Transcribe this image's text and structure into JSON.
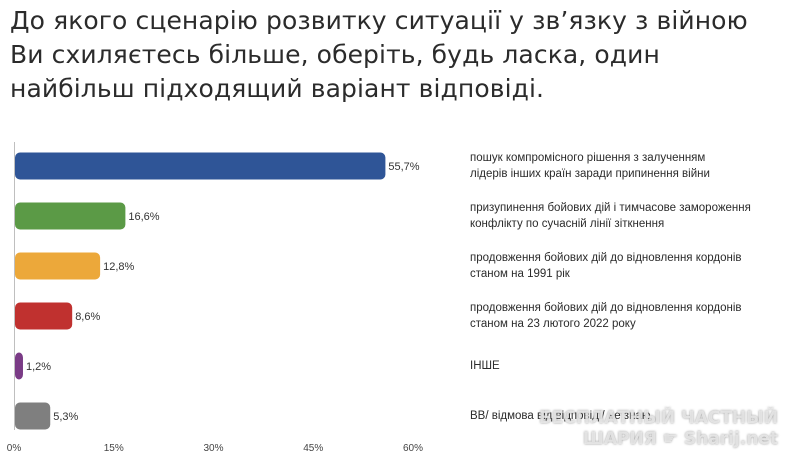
{
  "title_lines": [
    "До якого сценарію розвитку ситуації у зв’язку з війною",
    "Ви схиляєтесь більше, оберіть, будь ласка, один",
    "найбільш підходящий варіант відповіді."
  ],
  "chart_data": {
    "type": "bar",
    "orientation": "horizontal",
    "categories": [
      [
        "пошук компромісного рішення з залученням",
        "лідерів інших країн заради припинення війни"
      ],
      [
        "призупинення бойових дій і тимчасове замороження",
        "конфлікту по сучасній лінії зіткнення"
      ],
      [
        "продовження бойових дій до відновлення кордонів",
        "станом на 1991 рік"
      ],
      [
        "продовження бойових дій до відновлення кордонів",
        "станом на 23 лютого 2022 року"
      ],
      [
        "ІНШЕ"
      ],
      [
        "ВВ/ відмова від відповіді/ не знаю"
      ]
    ],
    "values": [
      55.7,
      16.6,
      12.8,
      8.6,
      1.2,
      5.3
    ],
    "value_labels": [
      "55,7%",
      "16,6%",
      "12,8%",
      "8,6%",
      "1,2%",
      "5,3%"
    ],
    "colors": [
      "#2f5597",
      "#5b9a46",
      "#eca83a",
      "#c0312f",
      "#7a3b86",
      "#7f7f7f"
    ],
    "xlim": [
      0,
      60
    ],
    "xticks": [
      0,
      15,
      30,
      45,
      60
    ],
    "xtick_labels": [
      "0%",
      "15%",
      "30%",
      "45%",
      "60%"
    ],
    "legend_position": "right",
    "grid": false
  },
  "watermark": {
    "line1": "БЕСПЛАТНЫЙ ЧАСТНЫЙ",
    "line2": "ШАРИЯ",
    "line3": "Sharij.net"
  }
}
